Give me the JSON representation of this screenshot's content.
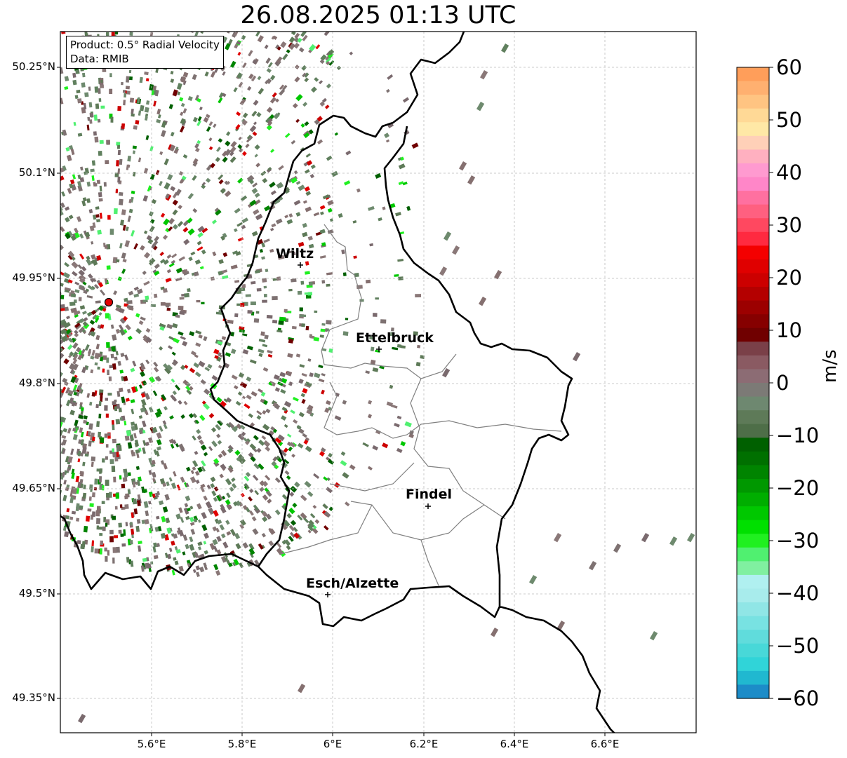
{
  "title": "26.08.2025 01:13 UTC",
  "info": {
    "product": "Product: 0.5° Radial Velocity",
    "data_source": "Data: RMIB"
  },
  "map": {
    "lon_ticks": [
      "5.6°E",
      "5.8°E",
      "6°E",
      "6.2°E",
      "6.4°E",
      "6.6°E"
    ],
    "lat_ticks": [
      "50.25°N",
      "50.1°N",
      "49.95°N",
      "49.8°N",
      "49.65°N",
      "49.5°N",
      "49.35°N"
    ],
    "cities": [
      {
        "name": "Wiltz"
      },
      {
        "name": "Ettelbruck"
      },
      {
        "name": "Findel"
      },
      {
        "name": "Esch/Alzette"
      }
    ],
    "radar_site_color": "#e00000"
  },
  "colorbar": {
    "label": "m/s",
    "ticks": [
      "60",
      "50",
      "40",
      "30",
      "20",
      "10",
      "0",
      "−10",
      "−20",
      "−30",
      "−40",
      "−50",
      "−60"
    ],
    "min": -60,
    "max": 60,
    "colors_top_to_bottom": [
      "#ff9e5a",
      "#ffb070",
      "#ffc482",
      "#ffd996",
      "#ffe8a6",
      "#ffd0b8",
      "#ffb0c0",
      "#ff9ad0",
      "#ff86c8",
      "#ff70a0",
      "#ff6080",
      "#ff4860",
      "#ff2a40",
      "#f40000",
      "#e00000",
      "#cc0000",
      "#b40000",
      "#9c0000",
      "#860000",
      "#700000",
      "#7a4048",
      "#8a5a62",
      "#8c6c74",
      "#7c7a76",
      "#6e8870",
      "#5e7a58",
      "#4e6e48",
      "#006000",
      "#007000",
      "#008400",
      "#009800",
      "#00ae00",
      "#00c800",
      "#00e000",
      "#20f020",
      "#50f070",
      "#80f0a0",
      "#b0f0f0",
      "#a8ecec",
      "#90e6e6",
      "#78e2e2",
      "#60dcdc",
      "#48d8d8",
      "#30d4d8",
      "#20b8d0",
      "#1c8cc8"
    ]
  }
}
